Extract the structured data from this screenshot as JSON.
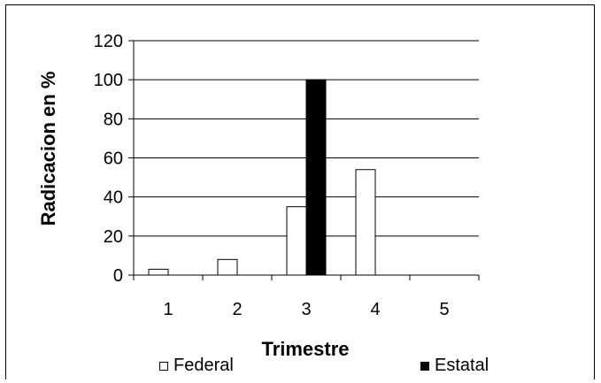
{
  "chart_data": {
    "type": "bar",
    "categories": [
      "1",
      "2",
      "3",
      "4",
      "5"
    ],
    "series": [
      {
        "name": "Federal",
        "values": [
          3,
          8,
          35,
          54,
          0
        ],
        "color": "#ffffff"
      },
      {
        "name": "Estatal",
        "values": [
          0,
          0,
          100,
          0,
          0
        ],
        "color": "#000000"
      }
    ],
    "ylim": [
      0,
      120
    ],
    "yticks": [
      0,
      20,
      40,
      60,
      80,
      100,
      120
    ],
    "xlabel": "Trimestre",
    "ylabel": "Radicacion en %",
    "grid": true,
    "legend_position": "bottom"
  }
}
